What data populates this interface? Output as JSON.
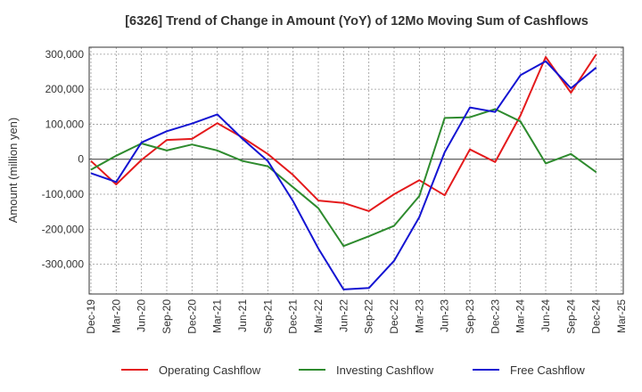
{
  "chart_data": {
    "type": "line",
    "title": "[6326]  Trend of Change in Amount (YoY) of 12Mo Moving Sum of Cashflows",
    "xlabel": "",
    "ylabel": "Amount (million yen)",
    "ylim": [
      -385000,
      320000
    ],
    "yticks": [
      300000,
      200000,
      100000,
      0,
      -100000,
      -200000,
      -300000
    ],
    "ytick_labels": [
      "300,000",
      "200,000",
      "100,000",
      "0",
      "-100,000",
      "-200,000",
      "-300,000"
    ],
    "categories": [
      "Dec-19",
      "Mar-20",
      "Jun-20",
      "Sep-20",
      "Dec-20",
      "Mar-21",
      "Jun-21",
      "Sep-21",
      "Dec-21",
      "Mar-22",
      "Jun-22",
      "Sep-22",
      "Dec-22",
      "Mar-23",
      "Jun-23",
      "Sep-23",
      "Dec-23",
      "Mar-24",
      "Jun-24",
      "Sep-24",
      "Dec-24",
      "Mar-25"
    ],
    "grid": true,
    "legend_position": "bottom",
    "series": [
      {
        "name": "Operating Cashflow",
        "color": "#e41a1c",
        "values": [
          -5000,
          -72000,
          -2000,
          55000,
          58000,
          103000,
          62000,
          15000,
          -45000,
          -118000,
          -125000,
          -148000,
          -100000,
          -60000,
          -103000,
          28000,
          -8000,
          125000,
          292000,
          190000,
          300000,
          null
        ]
      },
      {
        "name": "Investing Cashflow",
        "color": "#2e8b2e",
        "values": [
          -30000,
          10000,
          45000,
          25000,
          42000,
          25000,
          -5000,
          -20000,
          -80000,
          -140000,
          -248000,
          -220000,
          -190000,
          -105000,
          118000,
          120000,
          143000,
          108000,
          -12000,
          15000,
          -37000,
          null
        ]
      },
      {
        "name": "Free Cashflow",
        "color": "#1414d2",
        "values": [
          -40000,
          -65000,
          48000,
          80000,
          102000,
          128000,
          58000,
          -5000,
          -120000,
          -255000,
          -372000,
          -368000,
          -290000,
          -165000,
          20000,
          148000,
          135000,
          240000,
          280000,
          203000,
          262000,
          null
        ]
      }
    ]
  }
}
